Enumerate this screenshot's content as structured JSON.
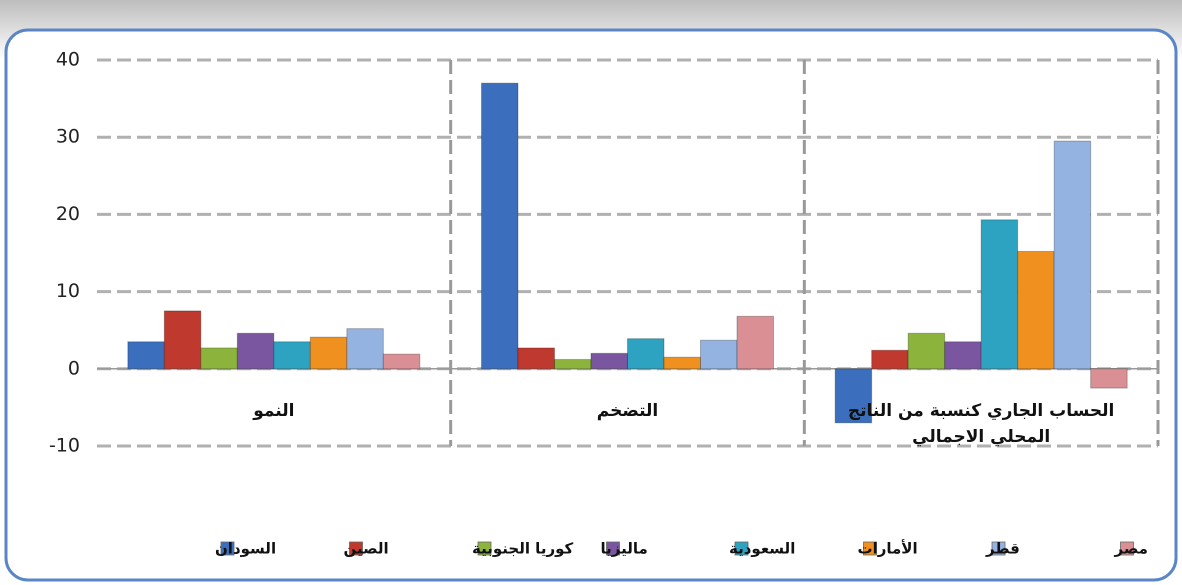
{
  "chart_data": {
    "type": "bar",
    "categories": [
      "النمو",
      "التضخم",
      "الحساب الجاري كنسبة من الناتج المحلي الاجمالي"
    ],
    "series": [
      {
        "name": "السودان",
        "color": "#3b6fbd",
        "values": [
          3.5,
          37,
          -7
        ]
      },
      {
        "name": "الصين",
        "color": "#c0392f",
        "values": [
          7.5,
          2.7,
          2.4
        ]
      },
      {
        "name": "كوريا الجنوبية",
        "color": "#8cb43c",
        "values": [
          2.7,
          1.2,
          4.6
        ]
      },
      {
        "name": "ماليزيا",
        "color": "#7a56a0",
        "values": [
          4.6,
          2.0,
          3.5
        ]
      },
      {
        "name": "السعودية",
        "color": "#2ea3c1",
        "values": [
          3.5,
          3.9,
          19.3
        ]
      },
      {
        "name": "الأمارات",
        "color": "#f0901f",
        "values": [
          4.1,
          1.5,
          15.2
        ]
      },
      {
        "name": "قطر",
        "color": "#95b3e0",
        "values": [
          5.2,
          3.7,
          29.5
        ]
      },
      {
        "name": "مصر",
        "color": "#d98f94",
        "values": [
          1.9,
          6.8,
          -2.5
        ]
      }
    ],
    "ylim": [
      -10,
      40
    ],
    "yticks": [
      -10,
      0,
      10,
      20,
      30,
      40
    ],
    "grid": true
  }
}
